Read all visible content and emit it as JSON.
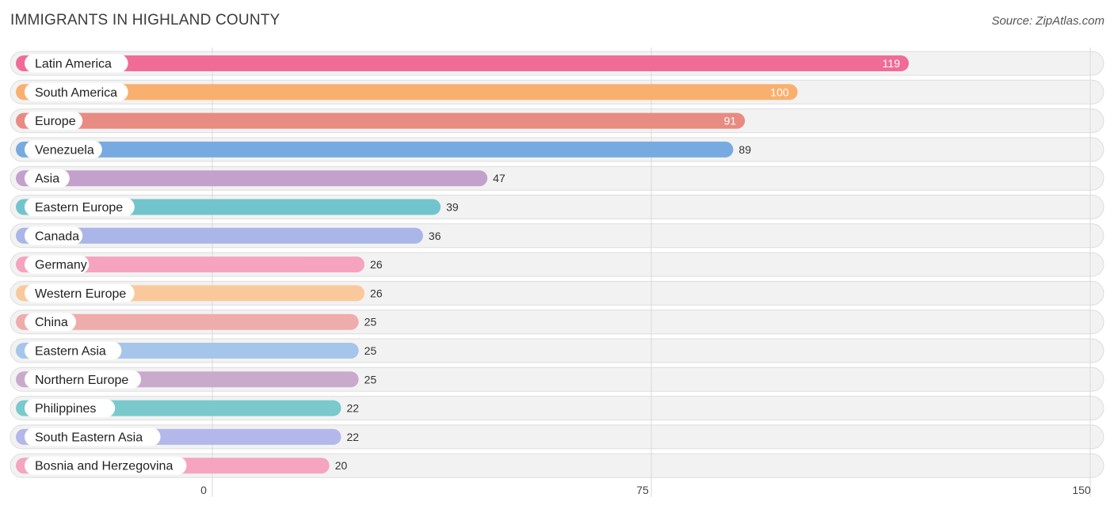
{
  "title": "IMMIGRANTS IN HIGHLAND COUNTY",
  "source": "Source: ZipAtlas.com",
  "chart_data": {
    "type": "bar",
    "orientation": "horizontal",
    "title": "IMMIGRANTS IN HIGHLAND COUNTY",
    "categories": [
      "Latin America",
      "South America",
      "Europe",
      "Venezuela",
      "Asia",
      "Eastern Europe",
      "Canada",
      "Germany",
      "Western Europe",
      "China",
      "Eastern Asia",
      "Northern Europe",
      "Philippines",
      "South Eastern Asia",
      "Bosnia and Herzegovina"
    ],
    "values": [
      119,
      100,
      91,
      89,
      47,
      39,
      36,
      26,
      26,
      25,
      25,
      25,
      22,
      22,
      20
    ],
    "colors": [
      "#f06b96",
      "#f9b06e",
      "#e88b82",
      "#77aae0",
      "#c4a0cc",
      "#72c4cc",
      "#aab5e8",
      "#f5a3bf",
      "#fac99b",
      "#eeacab",
      "#a5c5ea",
      "#c9aacd",
      "#79c9cd",
      "#b3b7ea",
      "#f5a5c0"
    ],
    "xticks": [
      0,
      75,
      150
    ],
    "xlim": [
      0,
      150
    ],
    "xlabel": "",
    "ylabel": "",
    "grid": true
  }
}
